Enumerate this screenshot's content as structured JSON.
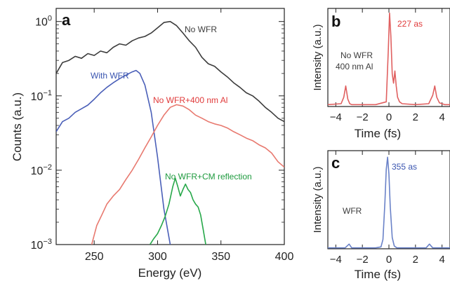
{
  "colors": {
    "no_wfr": "#3c3c3c",
    "with_wfr": "#4a5fb8",
    "al": "#e8796f",
    "cm": "#27a84a",
    "pulse_red": "#e06060",
    "pulse_blue": "#6a82c8",
    "red_text": "#e03a3a",
    "blue_text": "#3a55b0",
    "green_text": "#1e9a3e"
  },
  "chart_data": [
    {
      "panel": "a",
      "type": "line",
      "xlabel": "Energy (eV)",
      "ylabel": "Counts (a.u.)",
      "xlim": [
        220,
        400
      ],
      "ylim": [
        0.001,
        1.5
      ],
      "yscale": "log",
      "xticks": [
        "250",
        "300",
        "350",
        "400"
      ],
      "xtick_values": [
        250,
        300,
        350,
        400
      ],
      "yticks": [
        {
          "base": "10",
          "exp": "0",
          "value": 1
        },
        {
          "base": "10",
          "exp": "−1",
          "value": 0.1
        },
        {
          "base": "10",
          "exp": "−2",
          "value": 0.01
        },
        {
          "base": "10",
          "exp": "−3",
          "value": 0.001
        }
      ],
      "grid": false,
      "series": [
        {
          "name": "No WFR",
          "color_key": "no_wfr",
          "x": [
            220,
            225,
            230,
            235,
            240,
            245,
            250,
            255,
            260,
            265,
            270,
            275,
            280,
            285,
            290,
            295,
            300,
            305,
            310,
            315,
            320,
            325,
            330,
            335,
            340,
            345,
            350,
            355,
            360,
            365,
            370,
            375,
            380,
            385,
            390,
            395,
            400
          ],
          "y": [
            0.2,
            0.28,
            0.3,
            0.34,
            0.32,
            0.37,
            0.35,
            0.4,
            0.38,
            0.45,
            0.5,
            0.48,
            0.55,
            0.6,
            0.63,
            0.7,
            0.82,
            0.97,
            1.0,
            0.88,
            0.7,
            0.55,
            0.45,
            0.33,
            0.27,
            0.25,
            0.21,
            0.18,
            0.15,
            0.13,
            0.11,
            0.1,
            0.085,
            0.07,
            0.06,
            0.05,
            0.045
          ]
        },
        {
          "name": "With WFR",
          "color_key": "with_wfr",
          "x": [
            220,
            225,
            230,
            235,
            240,
            245,
            250,
            255,
            260,
            265,
            270,
            275,
            280,
            283,
            286,
            290,
            295,
            300,
            305,
            310
          ],
          "y": [
            0.033,
            0.045,
            0.05,
            0.06,
            0.067,
            0.075,
            0.09,
            0.11,
            0.13,
            0.15,
            0.17,
            0.19,
            0.21,
            0.22,
            0.2,
            0.14,
            0.06,
            0.015,
            0.003,
            0.001
          ]
        },
        {
          "name": "No WFR+400 nm Al",
          "color_key": "al",
          "x": [
            248,
            252,
            256,
            260,
            265,
            270,
            275,
            280,
            285,
            290,
            295,
            300,
            305,
            310,
            315,
            320,
            325,
            330,
            335,
            340,
            345,
            350,
            355,
            360,
            365,
            370,
            375,
            380,
            385,
            390,
            395,
            400
          ],
          "y": [
            0.001,
            0.0018,
            0.0025,
            0.0035,
            0.0045,
            0.0055,
            0.0075,
            0.01,
            0.014,
            0.02,
            0.028,
            0.04,
            0.055,
            0.07,
            0.076,
            0.073,
            0.065,
            0.055,
            0.05,
            0.045,
            0.042,
            0.04,
            0.037,
            0.033,
            0.03,
            0.027,
            0.025,
            0.022,
            0.02,
            0.017,
            0.013,
            0.011
          ]
        },
        {
          "name": "No WFR+CM reflection",
          "color_key": "cm",
          "x": [
            294,
            297,
            300,
            303,
            306,
            309,
            312,
            314,
            316,
            318,
            320,
            322,
            324,
            326,
            328,
            330,
            332,
            334,
            336,
            338
          ],
          "y": [
            0.001,
            0.0012,
            0.0014,
            0.0018,
            0.0024,
            0.0035,
            0.006,
            0.0078,
            0.006,
            0.0045,
            0.0055,
            0.0065,
            0.0055,
            0.005,
            0.004,
            0.0035,
            0.0032,
            0.0025,
            0.0016,
            0.001
          ]
        }
      ],
      "annotations": [
        {
          "text": "No WFR",
          "color_key": "no_wfr"
        },
        {
          "text": "With WFR",
          "color_key": "blue_text"
        },
        {
          "text": "No WFR+400 nm Al",
          "color_key": "red_text"
        },
        {
          "text": "No WFR+CM reflection",
          "color_key": "green_text"
        }
      ]
    },
    {
      "panel": "b",
      "type": "line",
      "xlabel": "Time (fs)",
      "ylabel": "Intensity (a.u.)",
      "xlim": [
        -4.6,
        4.6
      ],
      "ylim": [
        0,
        1.05
      ],
      "xticks": [
        "−4",
        "−2",
        "0",
        "2",
        "4"
      ],
      "xtick_values": [
        -4,
        -2,
        0,
        2,
        4
      ],
      "grid": false,
      "series": [
        {
          "name": "",
          "color_key": "pulse_red",
          "x": [
            -4.6,
            -3.6,
            -3.4,
            -3.25,
            -3.1,
            -2.95,
            -2.8,
            -2.6,
            -1.0,
            -0.2,
            -0.05,
            0.05,
            0.15,
            0.25,
            0.35,
            0.45,
            0.55,
            0.65,
            0.8,
            1.0,
            2.0,
            3.0,
            3.3,
            3.45,
            3.6,
            3.8,
            4.2,
            4.6
          ],
          "y": [
            0.02,
            0.03,
            0.1,
            0.22,
            0.08,
            0.03,
            0.02,
            0.02,
            0.02,
            0.05,
            0.6,
            1.0,
            0.75,
            0.35,
            0.25,
            0.38,
            0.22,
            0.1,
            0.05,
            0.03,
            0.02,
            0.03,
            0.12,
            0.22,
            0.1,
            0.04,
            0.02,
            0.02
          ]
        }
      ],
      "annotations": [
        {
          "text": "227 as",
          "color_key": "red_text"
        },
        {
          "text": "No WFR",
          "color_key": "no_wfr"
        },
        {
          "text": "400 nm Al",
          "color_key": "no_wfr"
        }
      ]
    },
    {
      "panel": "c",
      "type": "line",
      "xlabel": "Time (fs)",
      "ylabel": "Intensity (a.u.)",
      "xlim": [
        -4.6,
        4.6
      ],
      "ylim": [
        0,
        1.05
      ],
      "xticks": [
        "−4",
        "−2",
        "0",
        "2",
        "4"
      ],
      "xtick_values": [
        -4,
        -2,
        0,
        2,
        4
      ],
      "grid": false,
      "series": [
        {
          "name": "",
          "color_key": "pulse_blue",
          "x": [
            -4.6,
            -3.3,
            -3.0,
            -2.8,
            -2.6,
            -1.0,
            -0.6,
            -0.45,
            -0.3,
            -0.2,
            -0.1,
            0.0,
            0.1,
            0.25,
            0.4,
            0.6,
            1.5,
            2.8,
            3.05,
            3.3,
            4.6
          ],
          "y": [
            0.01,
            0.01,
            0.05,
            0.01,
            0.01,
            0.01,
            0.02,
            0.1,
            0.5,
            0.85,
            0.98,
            0.8,
            0.45,
            0.12,
            0.03,
            0.01,
            0.01,
            0.01,
            0.05,
            0.01,
            0.01
          ]
        }
      ],
      "annotations": [
        {
          "text": "355 as",
          "color_key": "blue_text"
        },
        {
          "text": "WFR",
          "color_key": "no_wfr"
        }
      ]
    }
  ]
}
